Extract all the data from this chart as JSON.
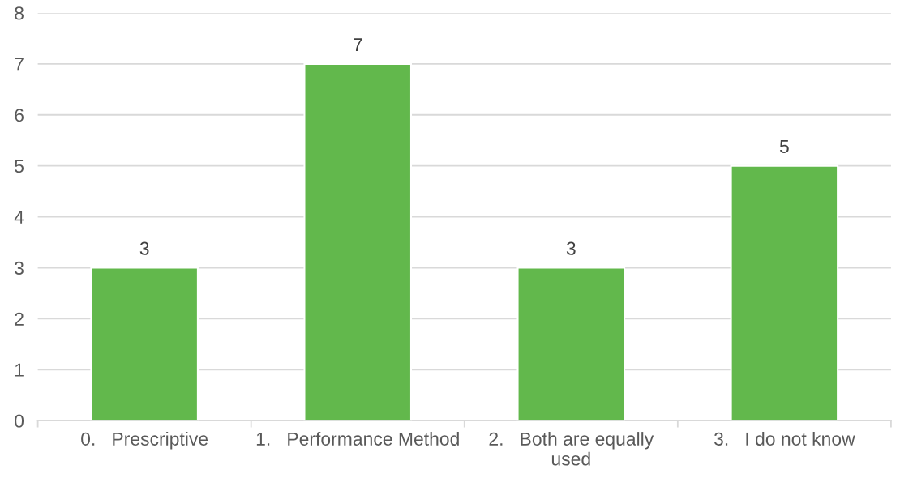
{
  "chart_data": {
    "type": "bar",
    "categories": [
      "0.   Prescriptive",
      "1.   Performance Method",
      "2.   Both are equally used",
      "3.   I do not know"
    ],
    "values": [
      3,
      7,
      3,
      5
    ],
    "color": "#62b84c",
    "ylim": [
      0,
      8
    ],
    "yticks": [
      0,
      1,
      2,
      3,
      4,
      5,
      6,
      7,
      8
    ],
    "grid": "y",
    "data_labels": true
  }
}
